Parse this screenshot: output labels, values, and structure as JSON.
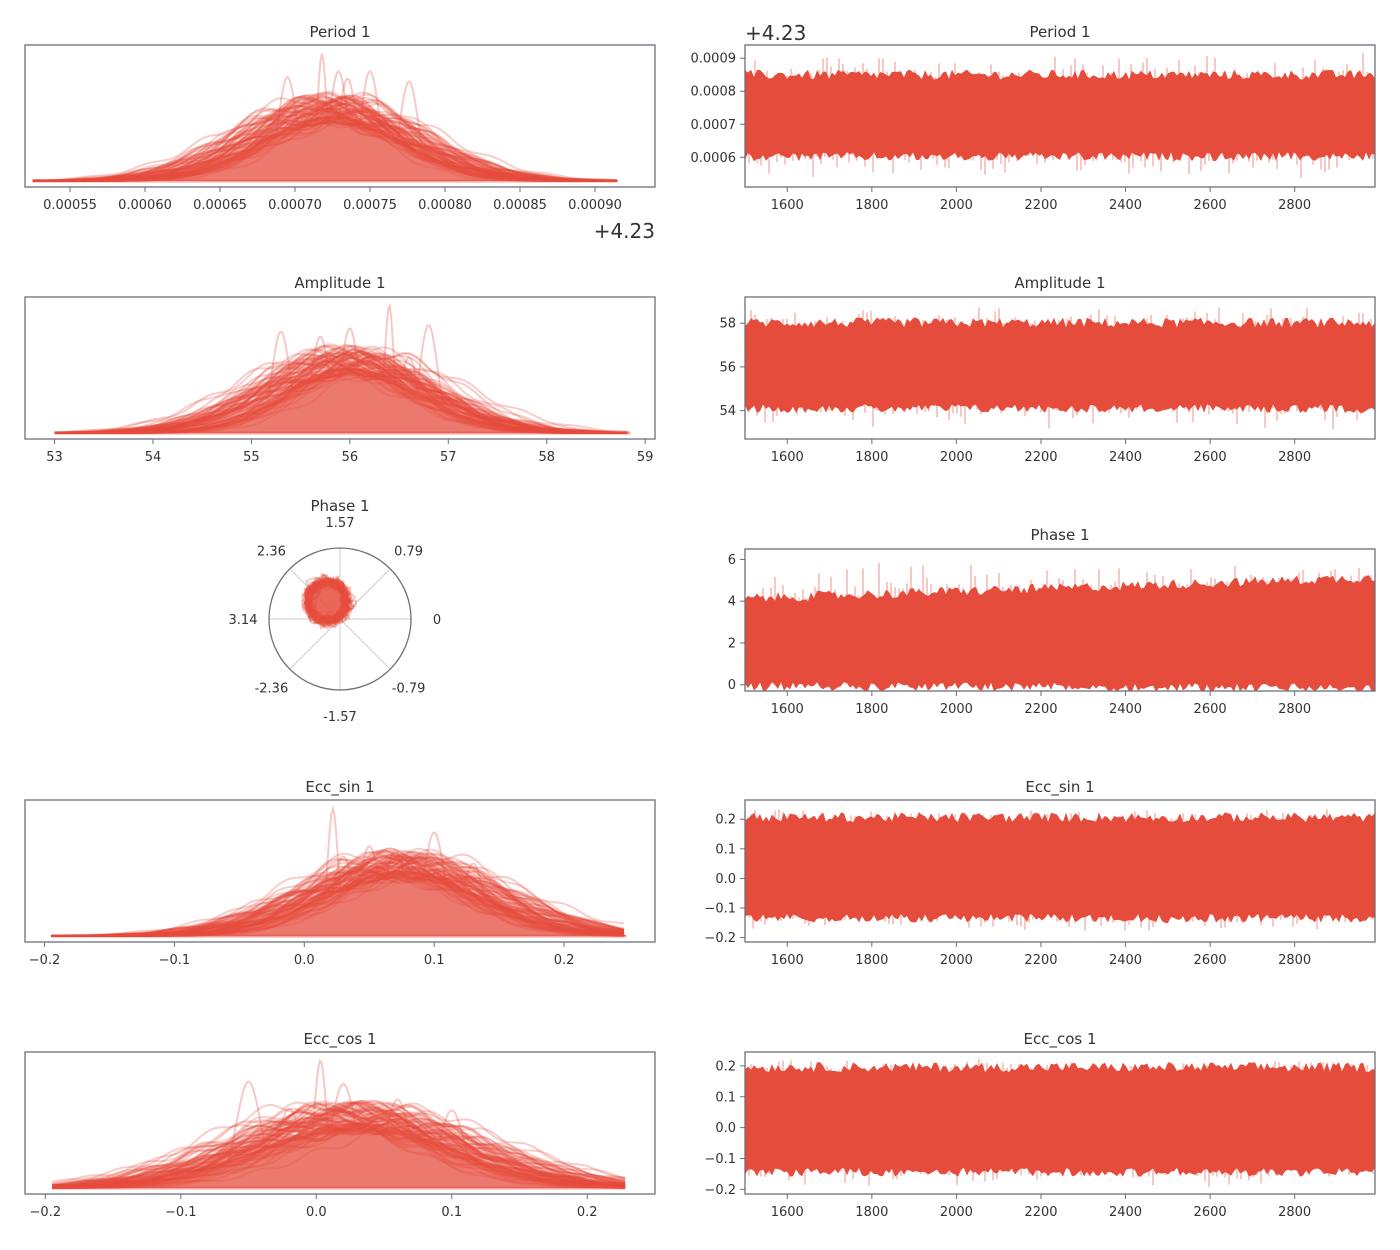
{
  "figure": {
    "series_color": "#e64c3c",
    "frame_color": "#6b6f78",
    "text_color": "#333333"
  },
  "chart_data": [
    {
      "type": "area",
      "kind": "density",
      "title": "Period 1",
      "offset_label": "+4.23",
      "xlim": [
        0.00052,
        0.00094
      ],
      "xticks": [
        0.00055,
        0.0006,
        0.00065,
        0.0007,
        0.00075,
        0.0008,
        0.00085,
        0.0009
      ],
      "xtick_labels": [
        "0.00055",
        "0.00060",
        "0.00065",
        "0.00070",
        "0.00075",
        "0.00080",
        "0.00085",
        "0.00090"
      ],
      "range": [
        0.000525,
        0.000915
      ],
      "mean": 0.000725,
      "sd": 5e-05,
      "peaks": [
        0.000718,
        0.000729,
        0.000735,
        0.000776,
        0.000695,
        0.00075
      ]
    },
    {
      "type": "line",
      "kind": "trace",
      "title": "Period 1",
      "offset_label": "+4.23",
      "xlim": [
        1500,
        2990
      ],
      "xticks": [
        1600,
        1800,
        2000,
        2200,
        2400,
        2600,
        2800
      ],
      "ylim": [
        0.00051,
        0.00094
      ],
      "yticks": [
        0.0006,
        0.0007,
        0.0008,
        0.0009
      ],
      "ytick_labels": [
        "0.0006",
        "0.0007",
        "0.0008",
        "0.0009"
      ],
      "band_low": [
        0.000615,
        0.000615
      ],
      "band_high": [
        0.000835,
        0.000835
      ],
      "spike_low": 0.00053,
      "spike_high": 0.00092
    },
    {
      "type": "area",
      "kind": "density",
      "title": "Amplitude 1",
      "xlim": [
        52.7,
        59.1
      ],
      "xticks": [
        53,
        54,
        55,
        56,
        57,
        58,
        59
      ],
      "xtick_labels": [
        "53",
        "54",
        "55",
        "56",
        "57",
        "58",
        "59"
      ],
      "range": [
        53.0,
        58.85
      ],
      "mean": 56.0,
      "sd": 0.75,
      "peaks": [
        56.4,
        56.0,
        56.6,
        55.7,
        56.8,
        55.3
      ]
    },
    {
      "type": "line",
      "kind": "trace",
      "title": "Amplitude 1",
      "xlim": [
        1500,
        2990
      ],
      "xticks": [
        1600,
        1800,
        2000,
        2200,
        2400,
        2600,
        2800
      ],
      "ylim": [
        52.7,
        59.2
      ],
      "yticks": [
        54,
        56,
        58
      ],
      "ytick_labels": [
        "54",
        "56",
        "58"
      ],
      "band_low": [
        54.3,
        54.3
      ],
      "band_high": [
        57.8,
        57.8
      ],
      "spike_low": 53.0,
      "spike_high": 58.9
    },
    {
      "type": "scatter",
      "kind": "polar-density",
      "title": "Phase 1",
      "angle_labels": [
        "0",
        "0.79",
        "1.57",
        "2.36",
        "3.14",
        "-2.36",
        "-1.57",
        "-0.79"
      ],
      "angles_deg": [
        0,
        45,
        90,
        135,
        180,
        225,
        270,
        315
      ],
      "blob_center": [
        -0.18,
        0.24
      ],
      "blob_radius": 0.27
    },
    {
      "type": "line",
      "kind": "trace",
      "title": "Phase 1",
      "xlim": [
        1500,
        2990
      ],
      "xticks": [
        1600,
        1800,
        2000,
        2200,
        2400,
        2600,
        2800
      ],
      "ylim": [
        -0.3,
        6.5
      ],
      "yticks": [
        0,
        2,
        4,
        6
      ],
      "ytick_labels": [
        "0",
        "2",
        "4",
        "6"
      ],
      "band_low": [
        0.15,
        0.05
      ],
      "band_high": [
        3.9,
        4.9
      ],
      "spike_low": 0.0,
      "spike_high": 6.2
    },
    {
      "type": "area",
      "kind": "density",
      "title": "Ecc_sin 1",
      "xlim": [
        -0.215,
        0.27
      ],
      "xticks": [
        -0.2,
        -0.1,
        0.0,
        0.1,
        0.2
      ],
      "xtick_labels": [
        "−0.2",
        "−0.1",
        "0.0",
        "0.1",
        "0.2"
      ],
      "range": [
        -0.195,
        0.248
      ],
      "mean": 0.075,
      "sd": 0.065,
      "peaks": [
        0.022,
        0.03,
        0.07,
        0.1,
        0.05,
        0.13
      ]
    },
    {
      "type": "line",
      "kind": "trace",
      "title": "Ecc_sin 1",
      "xlim": [
        1500,
        2990
      ],
      "xticks": [
        1600,
        1800,
        2000,
        2200,
        2400,
        2600,
        2800
      ],
      "ylim": [
        -0.215,
        0.265
      ],
      "yticks": [
        -0.2,
        -0.1,
        0.0,
        0.1,
        0.2
      ],
      "ytick_labels": [
        "−0.2",
        "−0.1",
        "0.0",
        "0.1",
        "0.2"
      ],
      "band_low": [
        -0.12,
        -0.12
      ],
      "band_high": [
        0.19,
        0.19
      ],
      "spike_low": -0.19,
      "spike_high": 0.245
    },
    {
      "type": "area",
      "kind": "density",
      "title": "Ecc_cos 1",
      "xlim": [
        -0.215,
        0.25
      ],
      "xticks": [
        -0.2,
        -0.1,
        0.0,
        0.1,
        0.2
      ],
      "xtick_labels": [
        "−0.2",
        "−0.1",
        "0.0",
        "0.1",
        "0.2"
      ],
      "range": [
        -0.195,
        0.228
      ],
      "mean": 0.03,
      "sd": 0.075,
      "peaks": [
        0.003,
        -0.05,
        0.02,
        0.06,
        -0.02,
        0.1
      ]
    },
    {
      "type": "line",
      "kind": "trace",
      "title": "Ecc_cos 1",
      "xlim": [
        1500,
        2990
      ],
      "xticks": [
        1600,
        1800,
        2000,
        2200,
        2400,
        2600,
        2800
      ],
      "ylim": [
        -0.215,
        0.245
      ],
      "yticks": [
        -0.2,
        -0.1,
        0.0,
        0.1,
        0.2
      ],
      "ytick_labels": [
        "−0.2",
        "−0.1",
        "0.0",
        "0.1",
        "0.2"
      ],
      "band_low": [
        -0.13,
        -0.13
      ],
      "band_high": [
        0.18,
        0.18
      ],
      "spike_low": -0.2,
      "spike_high": 0.23
    }
  ]
}
